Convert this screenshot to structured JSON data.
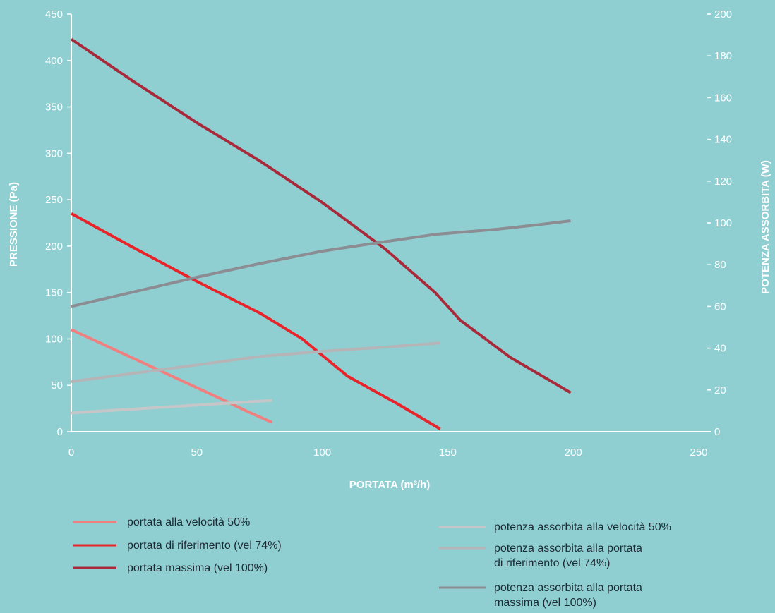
{
  "chart_data": {
    "type": "line",
    "title": "",
    "xlabel": "PORTATA (m³/h)",
    "ylabel": "PRESSIONE (Pa)",
    "y2label": "POTENZA ASSORBITA (W)",
    "xlim": [
      0,
      250
    ],
    "ylim": [
      0,
      450
    ],
    "y2lim": [
      0,
      200
    ],
    "xticks": [
      0,
      50,
      100,
      150,
      200,
      250
    ],
    "yticks": [
      0,
      50,
      100,
      150,
      200,
      250,
      300,
      350,
      400,
      450
    ],
    "y2ticks": [
      0,
      20,
      40,
      60,
      80,
      100,
      120,
      140,
      160,
      180,
      200
    ],
    "grid": false,
    "legend_position": "bottom",
    "series": [
      {
        "name": "portata alla velocità 50%",
        "axis": "left",
        "color": "#f08080",
        "x": [
          0,
          20,
          40,
          60,
          70,
          80
        ],
        "y": [
          110,
          85,
          60,
          35,
          22,
          10
        ]
      },
      {
        "name": "portata di riferimento (vel 74%)",
        "axis": "left",
        "color": "#e8232a",
        "x": [
          0,
          25,
          50,
          75,
          92,
          110,
          130,
          147
        ],
        "y": [
          235,
          198,
          162,
          128,
          100,
          60,
          30,
          3
        ]
      },
      {
        "name": "portata massima (vel 100%)",
        "axis": "left",
        "color": "#a82a3a",
        "x": [
          0,
          25,
          50,
          75,
          100,
          125,
          145,
          155,
          175,
          199
        ],
        "y": [
          423,
          377,
          333,
          292,
          247,
          197,
          150,
          120,
          80,
          42
        ]
      },
      {
        "name": "potenza assorbita alla velocità 50%",
        "axis": "right",
        "color": "#c6c6c8",
        "x": [
          0,
          20,
          40,
          60,
          80
        ],
        "y": [
          9,
          10.5,
          12,
          13.5,
          15
        ]
      },
      {
        "name": "potenza assorbita alla portata di riferimento (vel 74%)",
        "axis": "right",
        "color": "#b5b5b8",
        "x": [
          0,
          25,
          50,
          75,
          100,
          125,
          147
        ],
        "y": [
          24,
          28,
          32,
          36,
          38.5,
          40.5,
          42.5
        ]
      },
      {
        "name": "potenza assorbita alla portata massima (vel 100%)",
        "axis": "right",
        "color": "#8c8c93",
        "x": [
          0,
          25,
          50,
          75,
          100,
          125,
          145,
          165,
          170,
          185,
          199
        ],
        "y": [
          60,
          67,
          74,
          80.5,
          86.5,
          91,
          94.5,
          96.5,
          97,
          99,
          101
        ]
      }
    ]
  },
  "legend": {
    "left": [
      {
        "label": "portata alla velocità 50%",
        "color": "#f08080"
      },
      {
        "label": "portata di riferimento (vel 74%)",
        "color": "#e8232a"
      },
      {
        "label": "portata massima (vel 100%)",
        "color": "#a82a3a"
      }
    ],
    "right": [
      {
        "lines": [
          "potenza assorbita alla velocità 50%"
        ],
        "color": "#c6c6c8"
      },
      {
        "lines": [
          "potenza assorbita alla portata",
          "di riferimento (vel 74%)"
        ],
        "color": "#b5b5b8"
      },
      {
        "lines": [
          "potenza assorbita alla portata",
          "massima (vel 100%)"
        ],
        "color": "#8c8c93"
      }
    ]
  }
}
